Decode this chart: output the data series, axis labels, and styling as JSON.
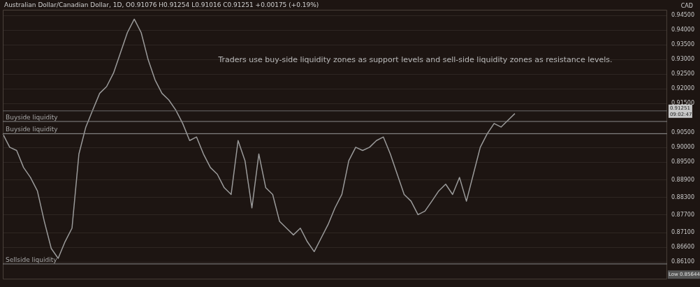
{
  "chart_data": {
    "type": "line",
    "title": "Australian Dollar/Canadian Dollar, 1D,  O0.91076  H0.91254  L0.91016  C0.91251  +0.00175 (+0.19%)",
    "ylabel": "CAD",
    "categories": [
      null,
      null,
      null,
      null,
      null,
      null,
      null,
      null,
      null,
      null,
      null,
      null,
      null,
      null,
      null,
      null,
      null,
      null,
      null,
      null,
      null,
      null,
      null,
      null,
      null,
      null,
      null,
      null,
      null,
      null,
      null,
      null,
      null,
      null,
      null,
      null,
      null,
      null,
      null,
      null,
      null,
      null,
      null,
      null,
      null,
      null,
      null,
      null,
      null,
      null,
      null,
      null,
      null,
      null,
      null,
      null,
      null,
      null,
      null,
      null,
      null,
      null,
      null,
      null,
      null,
      null,
      null,
      null,
      null,
      null,
      null,
      null,
      null,
      null,
      null,
      null,
      null,
      null,
      null,
      null,
      null,
      null,
      null,
      null,
      null,
      null,
      null,
      null,
      null,
      null,
      null,
      null,
      null,
      null,
      null,
      null,
      null
    ],
    "series": [
      {
        "color": "#9a9a9a",
        "values": [
          0.9047,
          0.9001,
          0.899,
          0.8932,
          0.8898,
          0.8852,
          0.8748,
          0.8656,
          0.8622,
          0.8679,
          0.8725,
          0.8978,
          0.907,
          0.9128,
          0.9185,
          0.9208,
          0.9254,
          0.9323,
          0.9392,
          0.9438,
          0.9392,
          0.93,
          0.9231,
          0.9185,
          0.9162,
          0.9128,
          0.9082,
          0.9024,
          0.9036,
          0.8978,
          0.8932,
          0.8909,
          0.8863,
          0.884,
          0.9024,
          0.8955,
          0.8794,
          0.8978,
          0.8863,
          0.884,
          0.8748,
          0.8725,
          0.8702,
          0.8725,
          0.8679,
          0.8645,
          0.8691,
          0.8737,
          0.8794,
          0.884,
          0.8955,
          0.9001,
          0.899,
          0.9001,
          0.9024,
          0.9036,
          0.8978,
          0.8909,
          0.884,
          0.8817,
          0.8771,
          0.8783,
          0.8817,
          0.8852,
          0.8875,
          0.884,
          0.8898,
          0.8817,
          0.8909,
          0.9001,
          0.9047,
          0.9082,
          0.907,
          0.9093,
          0.9116,
          null,
          null,
          null,
          null,
          null,
          null,
          null,
          null,
          null,
          null,
          null,
          null,
          null,
          null,
          null,
          null,
          null,
          null,
          null,
          null,
          null,
          null
        ]
      }
    ],
    "ylim": [
      0.855,
      0.947
    ],
    "yticks": [
      {
        "value": 0.945,
        "label": "0.94500"
      },
      {
        "value": 0.94,
        "label": "0.94000"
      },
      {
        "value": 0.935,
        "label": "0.93500"
      },
      {
        "value": 0.93,
        "label": "0.93000"
      },
      {
        "value": 0.925,
        "label": "0.92500"
      },
      {
        "value": 0.92,
        "label": "0.92000"
      },
      {
        "value": 0.915,
        "label": "0.91500"
      },
      {
        "value": 0.905,
        "label": "0.90500"
      },
      {
        "value": 0.9,
        "label": "0.90000"
      },
      {
        "value": 0.895,
        "label": "0.89500"
      },
      {
        "value": 0.889,
        "label": "0.88900"
      },
      {
        "value": 0.883,
        "label": "0.88300"
      },
      {
        "value": 0.877,
        "label": "0.87700"
      },
      {
        "value": 0.871,
        "label": "0.87100"
      },
      {
        "value": 0.866,
        "label": "0.86600"
      },
      {
        "value": 0.861,
        "label": "0.86100"
      }
    ],
    "grid": "y",
    "legend": false,
    "marker": "none",
    "line_style": "solid",
    "tick_labels": "y",
    "ref_lines": [
      {
        "axis": "y",
        "value": 0.9089,
        "label": "Buyside liquidity",
        "color": "#8a8a8a"
      },
      {
        "axis": "y",
        "value": 0.9047,
        "label": "Buyside liquidity",
        "color": "#8a8a8a"
      },
      {
        "axis": "y",
        "value": 0.8603,
        "label": "Sellside liquidity",
        "color": "#8a8a8a"
      },
      {
        "axis": "y",
        "value": 0.91251,
        "label": "0.91251\n09:02:47",
        "color": "#6a6a6a"
      }
    ],
    "annotations": [
      "Traders use buy-side liquidity zones as support levels and sell-side liquidity zones as resistance levels.",
      "Low 0.85644"
    ]
  }
}
